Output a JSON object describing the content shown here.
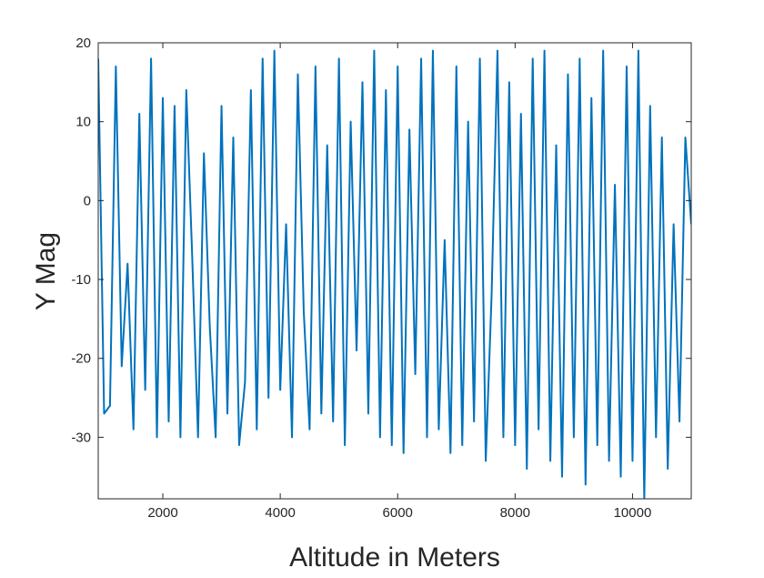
{
  "chart_data": {
    "type": "line",
    "xlabel": "Altitude in Meters",
    "ylabel": "Y Mag",
    "x": [
      900,
      1000,
      1100,
      1200,
      1300,
      1400,
      1500,
      1600,
      1700,
      1800,
      1900,
      2000,
      2100,
      2200,
      2300,
      2400,
      2500,
      2600,
      2700,
      2800,
      2900,
      3000,
      3100,
      3200,
      3300,
      3400,
      3500,
      3600,
      3700,
      3800,
      3900,
      4000,
      4100,
      4200,
      4300,
      4400,
      4500,
      4600,
      4700,
      4800,
      4900,
      5000,
      5100,
      5200,
      5300,
      5400,
      5500,
      5600,
      5700,
      5800,
      5900,
      6000,
      6100,
      6200,
      6300,
      6400,
      6500,
      6600,
      6700,
      6800,
      6900,
      7000,
      7100,
      7200,
      7300,
      7400,
      7500,
      7600,
      7700,
      7800,
      7900,
      8000,
      8100,
      8200,
      8300,
      8400,
      8500,
      8600,
      8700,
      8800,
      8900,
      9000,
      9100,
      9200,
      9300,
      9400,
      9500,
      9600,
      9700,
      9800,
      9900,
      10000,
      10100,
      10200,
      10300,
      10400,
      10500,
      10600,
      10700,
      10800,
      10900,
      11000
    ],
    "series": [
      {
        "color": "#0072bd",
        "values": [
          18,
          -27,
          -26,
          17,
          -21,
          -8,
          -29,
          11,
          -24,
          18,
          -30,
          13,
          -28,
          12,
          -30,
          14,
          -7,
          -30,
          6,
          -16,
          -30,
          12,
          -27,
          8,
          -31,
          -23,
          14,
          -29,
          18,
          -25,
          19,
          -24,
          -3,
          -30,
          16,
          -14,
          -29,
          17,
          -27,
          7,
          -28,
          18,
          -31,
          10,
          -19,
          15,
          -27,
          19,
          -30,
          14,
          -31,
          17,
          -32,
          9,
          -22,
          18,
          -30,
          19,
          -29,
          -5,
          -32,
          17,
          -31,
          10,
          -28,
          18,
          -33,
          -12,
          19,
          -30,
          15,
          -31,
          11,
          -34,
          18,
          -29,
          19,
          -33,
          7,
          -35,
          16,
          -30,
          18,
          -36,
          13,
          -31,
          19,
          -33,
          2,
          -35,
          17,
          -33,
          19,
          -38,
          12,
          -30,
          8,
          -34,
          -3,
          -28,
          8,
          -3
        ]
      }
    ],
    "xlim": [
      900,
      11000
    ],
    "ylim": [
      -37.8,
      20
    ],
    "xticks": [
      2000,
      4000,
      6000,
      8000,
      10000
    ],
    "yticks": [
      -30,
      -20,
      -10,
      0,
      10,
      20
    ]
  }
}
